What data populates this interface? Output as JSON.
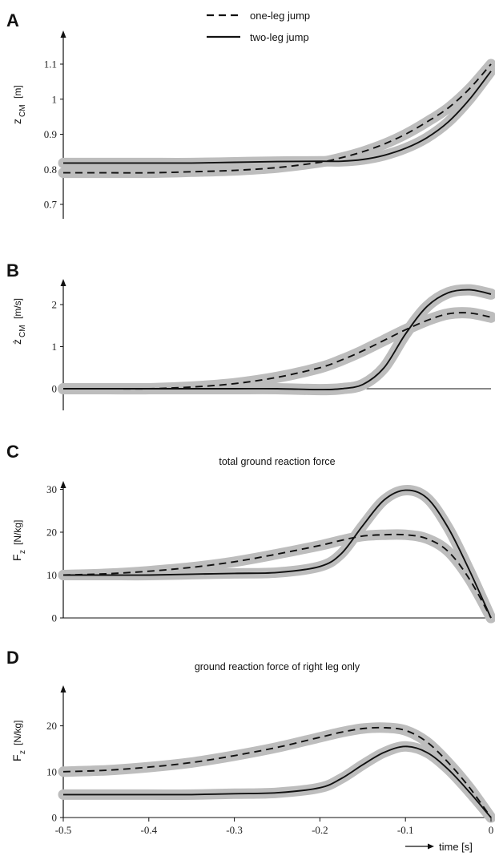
{
  "legend": [
    {
      "key": "one-leg",
      "label": "one-leg jump",
      "dash": true
    },
    {
      "key": "two-leg",
      "label": "two-leg jump",
      "dash": false
    }
  ],
  "xaxis": {
    "label": "time [s]",
    "ticks": [
      -0.5,
      -0.4,
      -0.3,
      -0.2,
      -0.1,
      0
    ],
    "tick_labels": [
      "-0.5",
      "-0.4",
      "-0.3",
      "-0.2",
      "-0.1",
      "0"
    ]
  },
  "colors": {
    "band": "#bdbdbd",
    "line": "#111111"
  },
  "chart_data": [
    {
      "type": "line",
      "panel": "A",
      "title": "",
      "ylabel": {
        "main": "z",
        "sub": "CM",
        "unit": "[m]"
      },
      "ylim": [
        0.68,
        1.16
      ],
      "xlim": [
        -0.5,
        0
      ],
      "yticks": [
        0.7,
        0.8,
        0.9,
        1,
        1.1
      ],
      "ytick_labels": [
        "0.7",
        "0.8",
        "0.9",
        "1",
        "1.1"
      ],
      "zero_line": false,
      "x": [
        -0.5,
        -0.45,
        -0.4,
        -0.35,
        -0.3,
        -0.25,
        -0.2,
        -0.175,
        -0.15,
        -0.125,
        -0.1,
        -0.075,
        -0.05,
        -0.025,
        0
      ],
      "series": [
        {
          "name": "one-leg jump",
          "values": [
            0.79,
            0.79,
            0.79,
            0.793,
            0.797,
            0.805,
            0.82,
            0.833,
            0.85,
            0.872,
            0.9,
            0.935,
            0.975,
            1.03,
            1.1
          ]
        },
        {
          "name": "two-leg jump",
          "values": [
            0.818,
            0.818,
            0.818,
            0.818,
            0.82,
            0.822,
            0.823,
            0.823,
            0.828,
            0.84,
            0.86,
            0.89,
            0.935,
            1.0,
            1.08
          ]
        }
      ]
    },
    {
      "type": "line",
      "panel": "B",
      "title": "",
      "ylabel": {
        "main": "ż",
        "sub": "CM",
        "unit": "[m/s]"
      },
      "ylim": [
        -0.5,
        2.6
      ],
      "xlim": [
        -0.5,
        0
      ],
      "yticks": [
        0,
        1,
        2
      ],
      "ytick_labels": [
        "0",
        "1",
        "2"
      ],
      "zero_line": true,
      "x": [
        -0.5,
        -0.45,
        -0.4,
        -0.35,
        -0.3,
        -0.25,
        -0.2,
        -0.175,
        -0.15,
        -0.125,
        -0.1,
        -0.075,
        -0.05,
        -0.025,
        0
      ],
      "series": [
        {
          "name": "one-leg jump",
          "values": [
            0,
            0,
            0,
            0.04,
            0.12,
            0.27,
            0.5,
            0.68,
            0.9,
            1.15,
            1.4,
            1.62,
            1.78,
            1.8,
            1.7
          ]
        },
        {
          "name": "two-leg jump",
          "values": [
            0,
            0,
            0,
            0,
            0,
            0,
            -0.02,
            0,
            0.1,
            0.5,
            1.3,
            1.95,
            2.28,
            2.35,
            2.25
          ]
        }
      ]
    },
    {
      "type": "line",
      "panel": "C",
      "title": "total ground reaction force",
      "ylabel": {
        "main": "F",
        "sub": "z",
        "unit": "[N/kg]"
      },
      "ylim": [
        0,
        34
      ],
      "xlim": [
        -0.5,
        0
      ],
      "yticks": [
        0,
        10,
        20,
        30
      ],
      "ytick_labels": [
        "0",
        "10",
        "20",
        "30"
      ],
      "zero_line": true,
      "x": [
        -0.5,
        -0.45,
        -0.4,
        -0.35,
        -0.3,
        -0.25,
        -0.2,
        -0.175,
        -0.15,
        -0.125,
        -0.1,
        -0.075,
        -0.05,
        -0.025,
        0
      ],
      "series": [
        {
          "name": "one-leg jump",
          "values": [
            10,
            10.3,
            10.9,
            11.8,
            13.1,
            14.9,
            16.9,
            18.1,
            19.1,
            19.4,
            19.4,
            18.5,
            15.5,
            9,
            0
          ]
        },
        {
          "name": "two-leg jump",
          "values": [
            10,
            10,
            10,
            10.2,
            10.4,
            10.6,
            12,
            15,
            21.5,
            27.5,
            29.8,
            28,
            21,
            11,
            0
          ]
        }
      ]
    },
    {
      "type": "line",
      "panel": "D",
      "title": "ground reaction force of right leg only",
      "ylabel": {
        "main": "F",
        "sub": "z",
        "unit": "[N/kg]"
      },
      "ylim": [
        0,
        26
      ],
      "xlim": [
        -0.5,
        0
      ],
      "yticks": [
        0,
        10,
        20
      ],
      "ytick_labels": [
        "0",
        "10",
        "20"
      ],
      "zero_line": true,
      "x": [
        -0.5,
        -0.45,
        -0.4,
        -0.35,
        -0.3,
        -0.25,
        -0.2,
        -0.175,
        -0.15,
        -0.125,
        -0.1,
        -0.075,
        -0.05,
        -0.025,
        0
      ],
      "series": [
        {
          "name": "one-leg jump",
          "values": [
            10,
            10.3,
            11,
            12,
            13.5,
            15.3,
            17.5,
            18.6,
            19.4,
            19.6,
            19,
            16.5,
            12,
            6.5,
            0
          ]
        },
        {
          "name": "two-leg jump",
          "values": [
            5,
            5,
            5,
            5,
            5.2,
            5.4,
            6.5,
            8.5,
            11.5,
            14.2,
            15.5,
            14.2,
            10.5,
            5.5,
            0
          ]
        }
      ]
    }
  ]
}
